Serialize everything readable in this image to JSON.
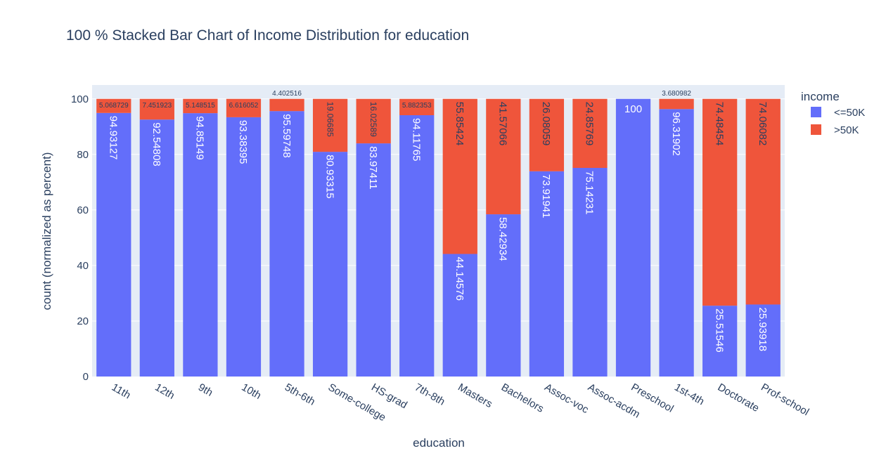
{
  "chart_data": {
    "type": "bar",
    "stacked": true,
    "title": "100 % Stacked Bar Chart of Income Distribution for education",
    "xlabel": "education",
    "ylabel": "count (normalized as percent)",
    "ylim": [
      0,
      105
    ],
    "yticks": [
      0,
      20,
      40,
      60,
      80,
      100
    ],
    "grid": true,
    "legend_title": "income",
    "legend_position": "right",
    "categories": [
      "11th",
      "12th",
      "9th",
      "10th",
      "5th-6th",
      "Some-college",
      "HS-grad",
      "7th-8th",
      "Masters",
      "Bachelors",
      "Assoc-voc",
      "Assoc-acdm",
      "Preschool",
      "1st-4th",
      "Doctorate",
      "Prof-school"
    ],
    "series": [
      {
        "name": "<=50K",
        "color": "#636efa",
        "values": [
          94.93127,
          92.54808,
          94.85149,
          93.38395,
          95.59748,
          80.93315,
          83.97411,
          94.11765,
          44.14576,
          58.42934,
          73.91941,
          75.14231,
          100,
          96.31902,
          25.51546,
          25.93918
        ],
        "labels": [
          "94.93127",
          "92.54808",
          "94.85149",
          "93.38395",
          "95.59748",
          "80.93315",
          "83.97411",
          "94.11765",
          "44.14576",
          "58.42934",
          "73.91941",
          "75.14231",
          "100",
          "96.31902",
          "25.51546",
          "25.93918"
        ]
      },
      {
        "name": ">50K",
        "color": "#ef553b",
        "values": [
          5.068729,
          7.451923,
          5.148515,
          6.616052,
          4.402516,
          19.06685,
          16.02589,
          5.882353,
          55.85424,
          41.57066,
          26.08059,
          24.85769,
          0,
          3.680982,
          74.48454,
          74.06082
        ],
        "labels": [
          "5.068729",
          "7.451923",
          "5.148515",
          "6.616052",
          "4.402516",
          "19.06685",
          "16.02589",
          "5.882353",
          "55.85424",
          "41.57066",
          "26.08059",
          "24.85769",
          "",
          "3.680982",
          "74.48454",
          "74.06082"
        ]
      }
    ]
  }
}
